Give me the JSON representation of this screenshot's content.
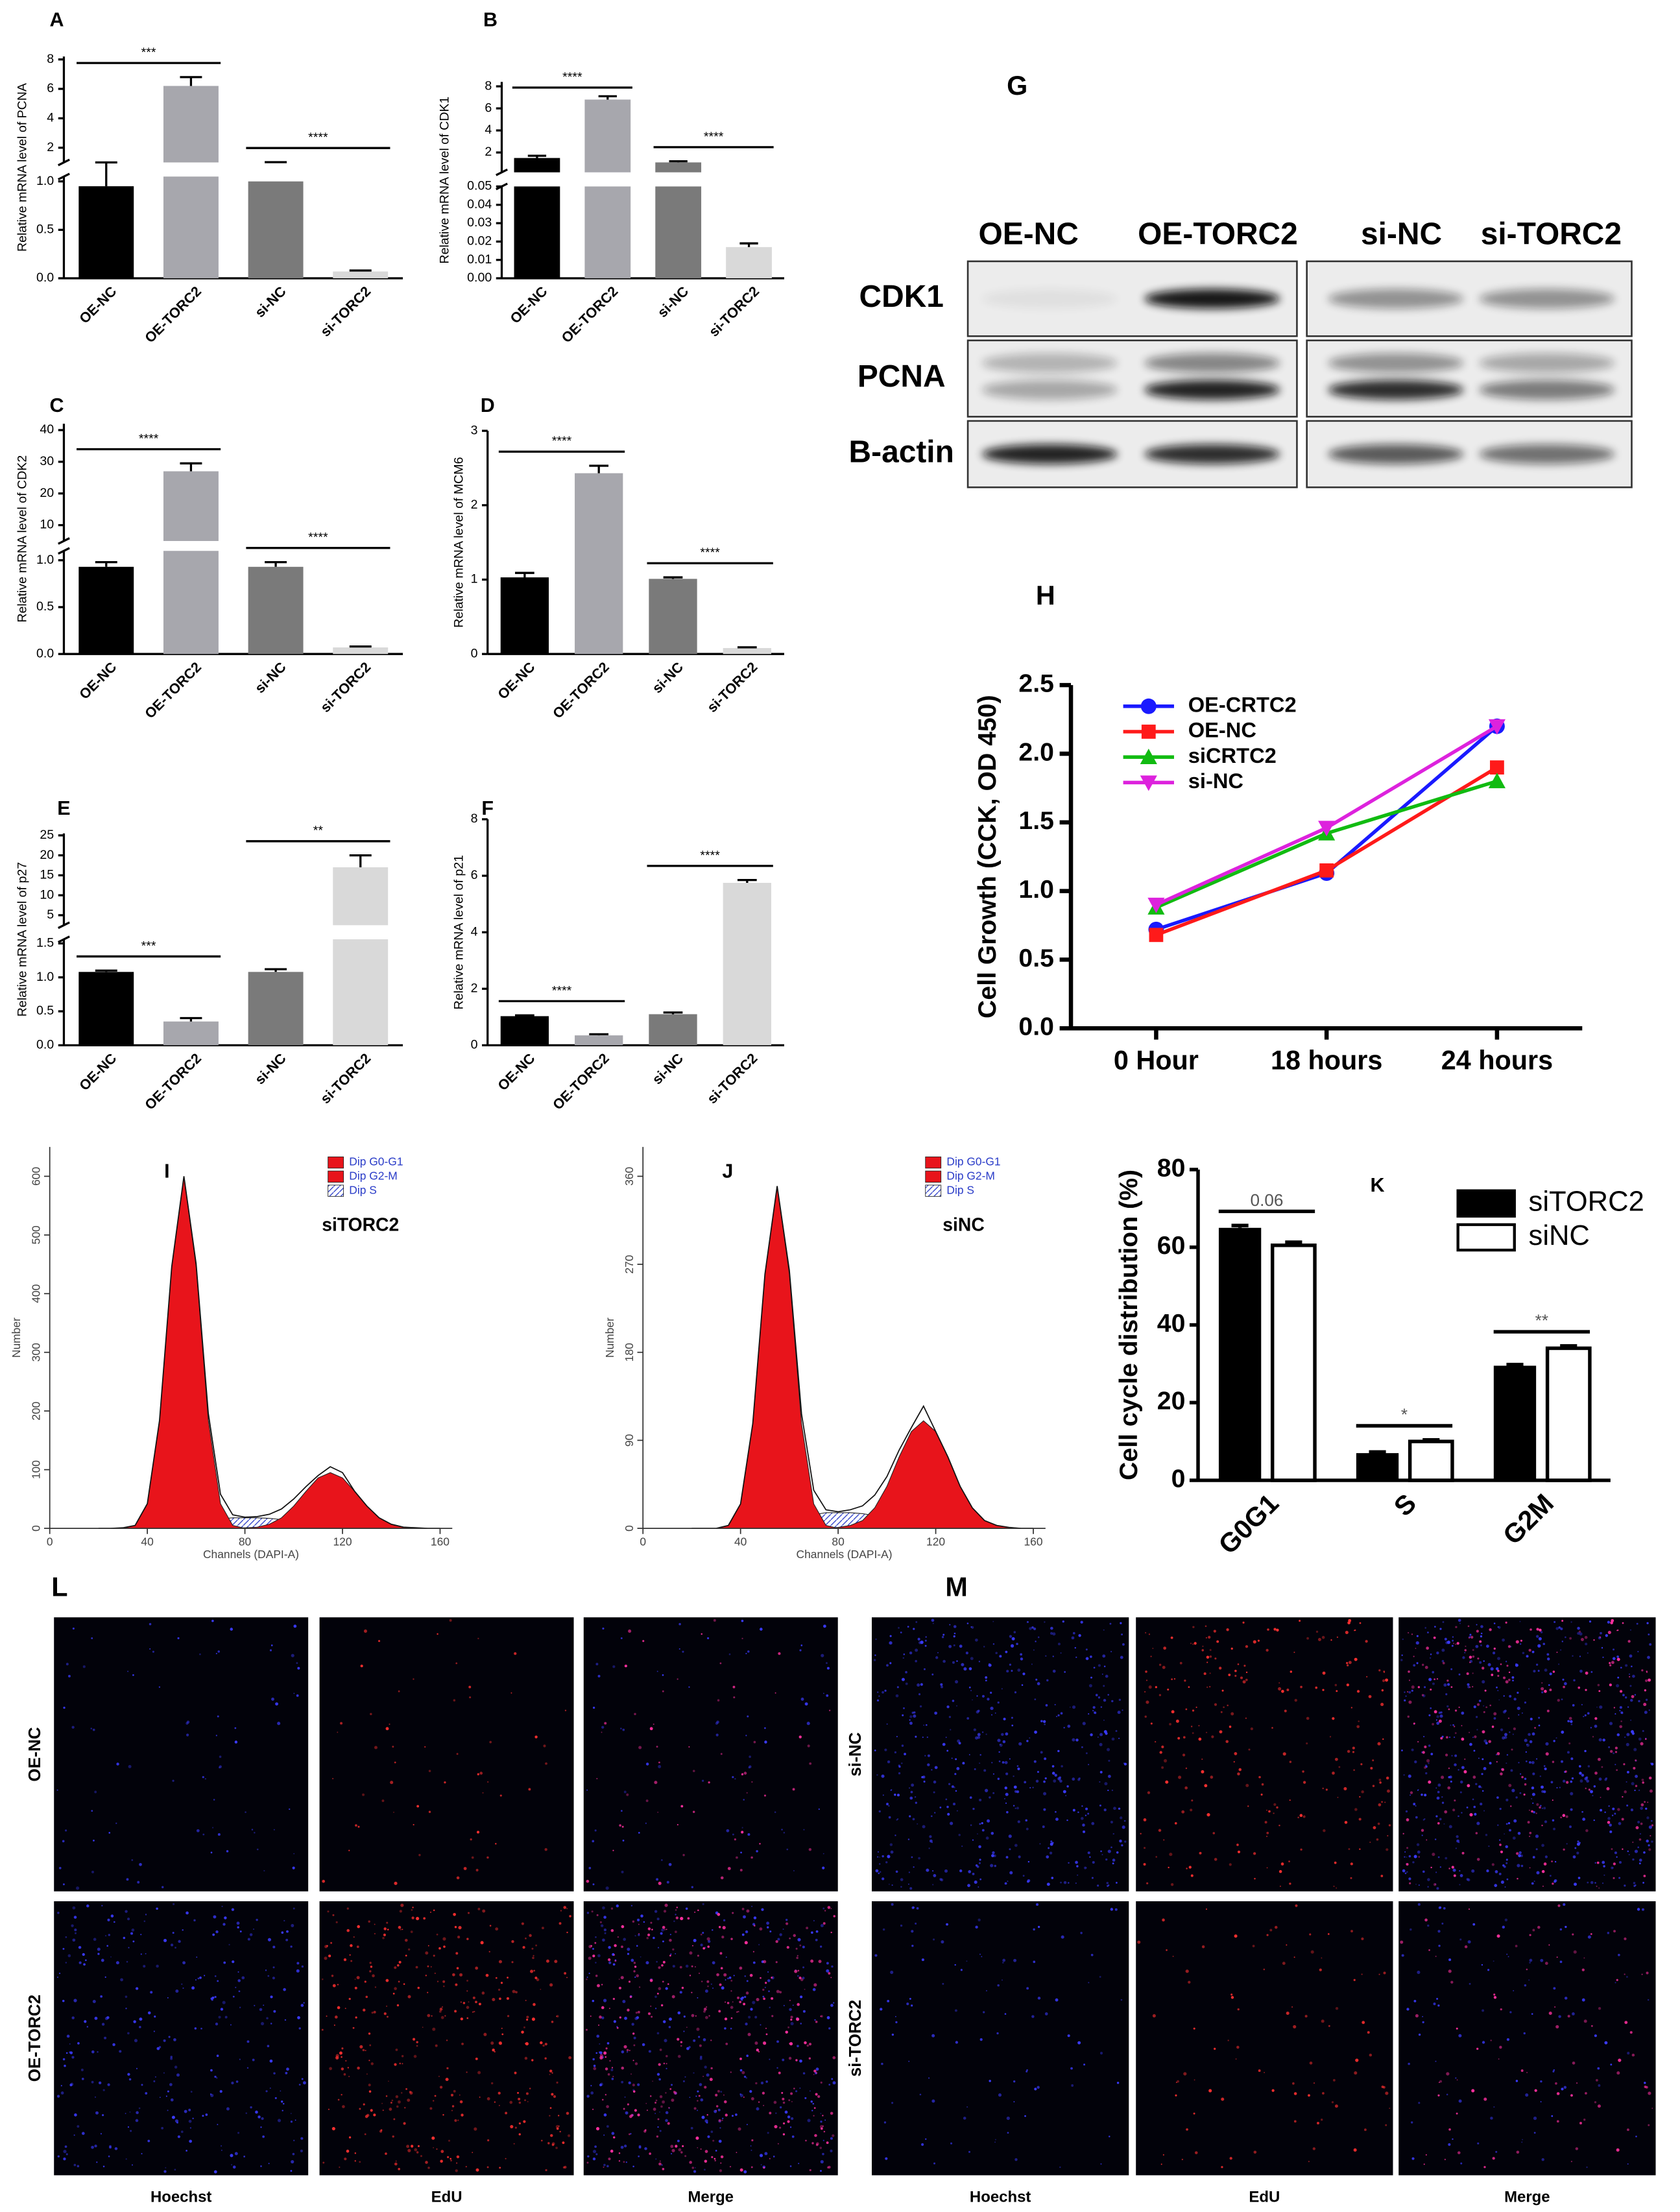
{
  "chart_data": [
    {
      "panel": "A",
      "type": "bar",
      "y_label": "Relative mRNA level of PCNA",
      "categories": [
        "OE-NC",
        "OE-TORC2",
        "si-NC",
        "si-TORC2"
      ],
      "colors": [
        "#000000",
        "#a7a7ad",
        "#7a7a7a",
        "#d9d9d9"
      ],
      "values": [
        0.95,
        6.2,
        1.0,
        0.07
      ],
      "errors": [
        0.05,
        0.6,
        0.02,
        0.01
      ],
      "segments": [
        {
          "ylim": [
            0,
            1.05
          ],
          "yticks": [
            {
              "value": 0,
              "label": "0.0"
            },
            0.5,
            {
              "value": 1,
              "label": "1.0"
            }
          ]
        },
        {
          "ylim": [
            1,
            8.2
          ],
          "yticks": [
            2,
            4,
            6,
            8
          ]
        }
      ],
      "annotations": [
        "***",
        "****"
      ]
    },
    {
      "panel": "B",
      "type": "bar",
      "y_label": "Relative mRNA level of CDK1",
      "categories": [
        "OE-NC",
        "OE-TORC2",
        "si-NC",
        "si-TORC2"
      ],
      "colors": [
        "#000000",
        "#a7a7ad",
        "#7a7a7a",
        "#d9d9d9"
      ],
      "values": [
        1.5,
        6.8,
        1.1,
        0.017
      ],
      "errors": [
        0.2,
        0.3,
        0.1,
        0.002
      ],
      "segments": [
        {
          "ylim": [
            0,
            0.05
          ],
          "yticks": [
            {
              "value": 0,
              "label": "0.00"
            },
            0.01,
            0.02,
            0.03,
            0.04,
            0.05
          ]
        },
        {
          "ylim": [
            0.2,
            8.4
          ],
          "yticks": [
            2,
            4,
            6,
            8
          ]
        }
      ],
      "annotations": [
        "****",
        "****"
      ]
    },
    {
      "panel": "C",
      "type": "bar",
      "y_label": "Relative mRNA level of CDK2",
      "categories": [
        "OE-NC",
        "OE-TORC2",
        "si-NC",
        "si-TORC2"
      ],
      "colors": [
        "#000000",
        "#a7a7ad",
        "#7a7a7a",
        "#d9d9d9"
      ],
      "values": [
        0.93,
        27,
        0.93,
        0.07
      ],
      "errors": [
        0.05,
        2.5,
        0.05,
        0.01
      ],
      "segments": [
        {
          "ylim": [
            0,
            1.1
          ],
          "yticks": [
            {
              "value": 0,
              "label": "0.0"
            },
            0.5,
            {
              "value": 1,
              "label": "1.0"
            }
          ]
        },
        {
          "ylim": [
            5,
            42
          ],
          "yticks": [
            10,
            20,
            30,
            40
          ]
        }
      ],
      "annotations": [
        "****",
        "****"
      ]
    },
    {
      "panel": "D",
      "type": "bar",
      "y_label": "Relative mRNA level of MCM6",
      "categories": [
        "OE-NC",
        "OE-TORC2",
        "si-NC",
        "si-TORC2"
      ],
      "colors": [
        "#000000",
        "#a7a7ad",
        "#7a7a7a",
        "#d9d9d9"
      ],
      "values": [
        1.03,
        2.43,
        1.01,
        0.08
      ],
      "errors": [
        0.06,
        0.1,
        0.02,
        0.01
      ],
      "ylim": [
        0,
        3
      ],
      "yticks": [
        0,
        1,
        2,
        3
      ],
      "annotations": [
        "****",
        "****"
      ]
    },
    {
      "panel": "E",
      "type": "bar",
      "y_label": "Relative mRNA level of p27",
      "categories": [
        "OE-NC",
        "OE-TORC2",
        "si-NC",
        "si-TORC2"
      ],
      "colors": [
        "#000000",
        "#a7a7ad",
        "#7a7a7a",
        "#d9d9d9"
      ],
      "values": [
        1.08,
        0.35,
        1.08,
        17
      ],
      "errors": [
        0.02,
        0.05,
        0.04,
        3
      ],
      "segments": [
        {
          "ylim": [
            0,
            1.56
          ],
          "yticks": [
            {
              "value": 0,
              "label": "0.0"
            },
            0.5,
            {
              "value": 1,
              "label": "1.0"
            },
            1.5
          ]
        },
        {
          "ylim": [
            2.5,
            25.5
          ],
          "yticks": [
            5,
            10,
            15,
            20,
            25
          ]
        }
      ],
      "annotations": [
        "***",
        "**"
      ]
    },
    {
      "panel": "F",
      "type": "bar",
      "y_label": "Relative mRNA level of p21",
      "categories": [
        "OE-NC",
        "OE-TORC2",
        "si-NC",
        "si-TORC2"
      ],
      "colors": [
        "#000000",
        "#a7a7ad",
        "#7a7a7a",
        "#d9d9d9"
      ],
      "values": [
        1.03,
        0.35,
        1.1,
        5.75
      ],
      "errors": [
        0.03,
        0.04,
        0.06,
        0.1
      ],
      "ylim": [
        0,
        8
      ],
      "yticks": [
        0,
        2,
        4,
        6,
        8
      ],
      "annotations": [
        "****",
        "****"
      ]
    },
    {
      "panel": "H",
      "type": "line",
      "y_label": "Cell Growth (CCK, OD 450)",
      "categories": [
        "0 Hour",
        "18 hours",
        "24 hours"
      ],
      "ylim": [
        0,
        2.5
      ],
      "yticks": [
        {
          "value": 0,
          "label": "0.0"
        },
        0.5,
        {
          "value": 1,
          "label": "1.0"
        },
        1.5,
        {
          "value": 2,
          "label": "2.0"
        },
        2.5
      ],
      "series": [
        {
          "name": "OE-CRTC2",
          "color": "#1a1aff",
          "marker": "circle",
          "values": [
            0.72,
            1.13,
            2.2
          ]
        },
        {
          "name": "OE-NC",
          "color": "#ff1a1a",
          "marker": "square",
          "values": [
            0.68,
            1.15,
            1.9
          ]
        },
        {
          "name": "siCRTC2",
          "color": "#11bb11",
          "marker": "triangle-up",
          "values": [
            0.88,
            1.42,
            1.8
          ]
        },
        {
          "name": "si-NC",
          "color": "#dd22dd",
          "marker": "triangle-down",
          "values": [
            0.9,
            1.46,
            2.2
          ]
        }
      ]
    },
    {
      "panel": "I",
      "type": "flow",
      "label": "siTORC2",
      "x_label": "Channels (DAPI-A)",
      "y_label": "Number",
      "xlim": [
        0,
        165
      ],
      "xticks": [
        0,
        40,
        80,
        120,
        160
      ],
      "ylim": [
        0,
        650
      ],
      "yticks": [
        0,
        100,
        200,
        300,
        400,
        500,
        600
      ],
      "x": [
        20,
        25,
        30,
        35,
        40,
        45,
        50,
        55,
        60,
        65,
        70,
        75,
        80,
        85,
        90,
        95,
        100,
        105,
        110,
        115,
        120,
        125,
        130,
        135,
        140,
        145,
        150,
        155,
        160
      ],
      "values": [
        0,
        0,
        1,
        5,
        42,
        184,
        446,
        600,
        451,
        196,
        58,
        23,
        19,
        20,
        24,
        33,
        50,
        71,
        90,
        105,
        95,
        63,
        38,
        18,
        7,
        2,
        1,
        0,
        0
      ],
      "series": [
        {
          "name": "Dip G0-G1",
          "color": "#e8141b",
          "values": [
            0,
            0,
            0,
            5,
            42,
            184,
            446,
            600,
            446,
            184,
            42,
            5,
            0,
            0,
            0,
            0,
            0,
            0,
            0,
            0,
            0,
            0,
            0,
            0,
            0,
            0,
            0,
            0,
            0
          ]
        },
        {
          "name": "Dip G2-M",
          "color": "#e8141b",
          "values": [
            0,
            0,
            0,
            0,
            0,
            0,
            0,
            0,
            0,
            0,
            0,
            0,
            1,
            2,
            7,
            18,
            38,
            63,
            86,
            95,
            86,
            63,
            38,
            18,
            7,
            2,
            1,
            0,
            0
          ]
        },
        {
          "name": "Dip S",
          "color": "#2a3cc8",
          "pattern": "hatch",
          "values": [
            0,
            0,
            0,
            0,
            0,
            0,
            0,
            0,
            5,
            12,
            16,
            18,
            18,
            18,
            17,
            15,
            12,
            8,
            4,
            2,
            0,
            0,
            0,
            0,
            0,
            0,
            0,
            0,
            0
          ]
        }
      ]
    },
    {
      "panel": "J",
      "type": "flow",
      "label": "siNC",
      "x_label": "Channels (DAPI-A)",
      "y_label": "Number",
      "xlim": [
        0,
        165
      ],
      "xticks": [
        0,
        40,
        80,
        120,
        160
      ],
      "ylim": [
        0,
        390
      ],
      "yticks": [
        0,
        90,
        180,
        270,
        360
      ],
      "x": [
        20,
        25,
        30,
        35,
        40,
        45,
        50,
        55,
        60,
        65,
        70,
        75,
        80,
        85,
        90,
        95,
        100,
        105,
        110,
        115,
        120,
        125,
        130,
        135,
        140,
        145,
        150,
        155,
        160
      ],
      "values": [
        0,
        0,
        0,
        3,
        25,
        107,
        260,
        350,
        264,
        117,
        39,
        19,
        17,
        19,
        23,
        34,
        53,
        80,
        103,
        125,
        99,
        73,
        43,
        21,
        8,
        3,
        1,
        0,
        0
      ],
      "series": [
        {
          "name": "Dip G0-G1",
          "color": "#e8141b",
          "values": [
            0,
            0,
            0,
            3,
            25,
            107,
            260,
            350,
            260,
            107,
            25,
            3,
            0,
            0,
            0,
            0,
            0,
            0,
            0,
            0,
            0,
            0,
            0,
            0,
            0,
            0,
            0,
            0,
            0
          ]
        },
        {
          "name": "Dip G2-M",
          "color": "#e8141b",
          "values": [
            0,
            0,
            0,
            0,
            0,
            0,
            0,
            0,
            0,
            0,
            0,
            0,
            1,
            3,
            8,
            21,
            43,
            73,
            99,
            110,
            99,
            73,
            43,
            21,
            8,
            3,
            1,
            0,
            0
          ]
        },
        {
          "name": "Dip S",
          "color": "#2a3cc8",
          "pattern": "hatch",
          "values": [
            0,
            0,
            0,
            0,
            0,
            0,
            0,
            0,
            4,
            10,
            14,
            16,
            16,
            16,
            15,
            13,
            10,
            7,
            4,
            2,
            0,
            0,
            0,
            0,
            0,
            0,
            0,
            0,
            0
          ]
        }
      ]
    },
    {
      "panel": "K",
      "type": "bar",
      "y_label": "Cell cycle distribution (%)",
      "categories": [
        "G0G1",
        "S",
        "G2M"
      ],
      "ylim": [
        0,
        80
      ],
      "yticks": [
        0,
        20,
        40,
        60,
        80
      ],
      "series": [
        {
          "name": "siTORC2",
          "color": "#000000",
          "values": [
            65,
            7,
            29.5
          ],
          "errors": [
            0.6,
            0.3,
            0.3
          ]
        },
        {
          "name": "siNC",
          "color": "#ffffff",
          "values": [
            60.5,
            10,
            34
          ],
          "errors": [
            0.8,
            0.4,
            0.6
          ]
        }
      ],
      "annotations": [
        "0.06",
        "*",
        "**"
      ]
    }
  ],
  "blot": {
    "panel": "G",
    "lanes": [
      "OE-NC",
      "OE-TORC2",
      "si-NC",
      "si-TORC2"
    ],
    "rows": [
      "CDK1",
      "PCNA",
      "B-actin"
    ]
  },
  "microscopy": [
    {
      "panel": "L",
      "rows": [
        "OE-NC",
        "OE-TORC2"
      ],
      "columns": [
        "Hoechst",
        "EdU",
        "Merge"
      ]
    },
    {
      "panel": "M",
      "rows": [
        "si-NC",
        "si-TORC2"
      ],
      "columns": [
        "Hoechst",
        "EdU",
        "Merge"
      ]
    }
  ]
}
